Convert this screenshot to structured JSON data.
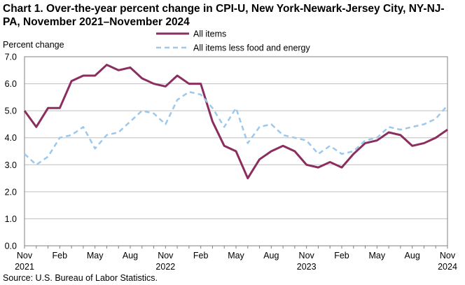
{
  "chart_data": {
    "type": "line",
    "title": "Chart 1. Over-the-year percent change in CPI-U, New York-Newark-Jersey City, NY-NJ-PA, November 2021–November  2024",
    "ylabel": "Percent change",
    "xlabel": "",
    "ylim": [
      0.0,
      7.0
    ],
    "yticks": [
      "0.0",
      "1.0",
      "2.0",
      "3.0",
      "4.0",
      "5.0",
      "6.0",
      "7.0"
    ],
    "x_tick_labels": [
      {
        "index": 0,
        "line1": "Nov",
        "line2": "2021"
      },
      {
        "index": 3,
        "line1": "Feb",
        "line2": ""
      },
      {
        "index": 6,
        "line1": "May",
        "line2": ""
      },
      {
        "index": 9,
        "line1": "Aug",
        "line2": ""
      },
      {
        "index": 12,
        "line1": "Nov",
        "line2": "2022"
      },
      {
        "index": 15,
        "line1": "Feb",
        "line2": ""
      },
      {
        "index": 18,
        "line1": "May",
        "line2": ""
      },
      {
        "index": 21,
        "line1": "Aug",
        "line2": ""
      },
      {
        "index": 24,
        "line1": "Nov",
        "line2": "2023"
      },
      {
        "index": 27,
        "line1": "Feb",
        "line2": ""
      },
      {
        "index": 30,
        "line1": "May",
        "line2": ""
      },
      {
        "index": 33,
        "line1": "Aug",
        "line2": ""
      },
      {
        "index": 36,
        "line1": "Nov",
        "line2": "2024"
      }
    ],
    "series": [
      {
        "name": "All items",
        "color": "#8b2e5f",
        "dash": "solid",
        "values": [
          5.0,
          4.4,
          5.1,
          5.1,
          6.1,
          6.3,
          6.3,
          6.7,
          6.5,
          6.6,
          6.2,
          6.0,
          5.9,
          6.3,
          6.0,
          6.0,
          4.6,
          3.7,
          3.5,
          2.5,
          3.2,
          3.5,
          3.7,
          3.5,
          3.0,
          2.9,
          3.1,
          2.9,
          3.4,
          3.8,
          3.9,
          4.2,
          4.1,
          3.7,
          3.8,
          4.0,
          4.3
        ]
      },
      {
        "name": "All items less food and energy",
        "color": "#9dc8ec",
        "dash": "dashed",
        "values": [
          3.4,
          3.0,
          3.3,
          4.0,
          4.1,
          4.4,
          3.6,
          4.1,
          4.2,
          4.6,
          5.0,
          4.9,
          4.5,
          5.4,
          5.7,
          5.6,
          5.1,
          4.4,
          5.1,
          3.8,
          4.4,
          4.5,
          4.1,
          4.0,
          3.9,
          3.4,
          3.7,
          3.4,
          3.5,
          3.9,
          4.0,
          4.4,
          4.3,
          4.4,
          4.5,
          4.7,
          5.2
        ]
      }
    ],
    "grid": true,
    "legend_position": "top-center"
  },
  "source": "Source:  U.S. Bureau of Labor Statistics."
}
